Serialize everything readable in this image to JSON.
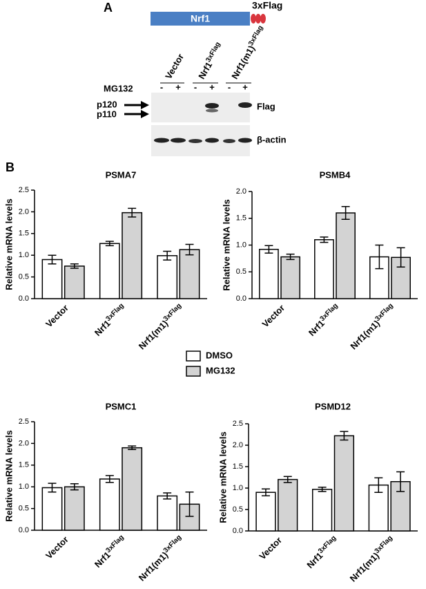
{
  "panel_a": {
    "label": "A",
    "construct": {
      "protein": "Nrf1",
      "tag": "3xFlag"
    },
    "lanes": [
      {
        "text": "Vector"
      },
      {
        "text": "Nrf1",
        "sup": "3xFlag"
      },
      {
        "text": "Nrf1(m1)",
        "sup": "3xFlag"
      }
    ],
    "treatment": {
      "label": "MG132",
      "signs": [
        "-",
        "+",
        "-",
        "+",
        "-",
        "+"
      ]
    },
    "bands": {
      "upper": "p120",
      "lower": "p110"
    },
    "blots": [
      "Flag",
      "β-actin"
    ]
  },
  "panel_b": {
    "label": "B",
    "legend": [
      {
        "name": "DMSO",
        "color": "#ffffff"
      },
      {
        "name": "MG132",
        "color": "#d3d3d3"
      }
    ]
  },
  "chart_data": [
    {
      "type": "bar",
      "title": "PSMA7",
      "y_label": "Relative mRNA levels",
      "categories": [
        {
          "text": "Vector"
        },
        {
          "text": "Nrf1",
          "sup": "3xFlag"
        },
        {
          "text": "Nrf1(m1)",
          "sup": "3xFlag"
        }
      ],
      "series": [
        {
          "values": [
            0.9,
            1.27,
            0.99
          ],
          "errors": [
            0.1,
            0.05,
            0.1
          ]
        },
        {
          "values": [
            0.75,
            1.98,
            1.13
          ],
          "errors": [
            0.05,
            0.1,
            0.12
          ]
        }
      ],
      "ylim": [
        0,
        2.5
      ],
      "yticks": [
        {
          "value": 0,
          "label": "0.0"
        },
        {
          "value": 0.5,
          "label": "0.5"
        },
        {
          "value": 1,
          "label": "1.0"
        },
        {
          "value": 1.5,
          "label": "1.5"
        },
        {
          "value": 2,
          "label": "2.0"
        },
        {
          "value": 2.5,
          "label": "2.5"
        }
      ]
    },
    {
      "type": "bar",
      "title": "PSMB4",
      "y_label": "Relative mRNA levels",
      "categories": [
        {
          "text": "Vector"
        },
        {
          "text": "Nrf1",
          "sup": "3xFlag"
        },
        {
          "text": "Nrf1(m1)",
          "sup": "3xFlag"
        }
      ],
      "series": [
        {
          "values": [
            0.92,
            1.1,
            0.78
          ],
          "errors": [
            0.07,
            0.05,
            0.22
          ]
        },
        {
          "values": [
            0.78,
            1.6,
            0.77
          ],
          "errors": [
            0.05,
            0.12,
            0.18
          ]
        }
      ],
      "ylim": [
        0,
        2
      ],
      "yticks": [
        {
          "value": 0,
          "label": "0.0"
        },
        {
          "value": 0.5,
          "label": "0.5"
        },
        {
          "value": 1,
          "label": "1.0"
        },
        {
          "value": 1.5,
          "label": "1.5"
        },
        {
          "value": 2,
          "label": "2.0"
        }
      ]
    },
    {
      "type": "bar",
      "title": "PSMC1",
      "y_label": "Relative mRNA levels",
      "categories": [
        {
          "text": "Vector"
        },
        {
          "text": "Nrf1",
          "sup": "3xFlag"
        },
        {
          "text": "Nrf1(m1)",
          "sup": "3xFlag"
        }
      ],
      "series": [
        {
          "values": [
            0.98,
            1.18,
            0.79
          ],
          "errors": [
            0.1,
            0.08,
            0.07
          ]
        },
        {
          "values": [
            1.0,
            1.9,
            0.6
          ],
          "errors": [
            0.07,
            0.04,
            0.28
          ]
        }
      ],
      "ylim": [
        0,
        2.5
      ],
      "yticks": [
        {
          "value": 0,
          "label": "0.0"
        },
        {
          "value": 0.5,
          "label": "0.5"
        },
        {
          "value": 1,
          "label": "1.0"
        },
        {
          "value": 1.5,
          "label": "1.5"
        },
        {
          "value": 2,
          "label": "2.0"
        },
        {
          "value": 2.5,
          "label": "2.5"
        }
      ]
    },
    {
      "type": "bar",
      "title": "PSMD12",
      "y_label": "Relative mRNA levels",
      "categories": [
        {
          "text": "Vector"
        },
        {
          "text": "Nrf1",
          "sup": "3xFlag"
        },
        {
          "text": "Nrf1(m1)",
          "sup": "3xFlag"
        }
      ],
      "series": [
        {
          "values": [
            0.9,
            0.97,
            1.07
          ],
          "errors": [
            0.08,
            0.05,
            0.17
          ]
        },
        {
          "values": [
            1.2,
            2.22,
            1.15
          ],
          "errors": [
            0.07,
            0.1,
            0.23
          ]
        }
      ],
      "ylim": [
        0,
        2.5
      ],
      "yticks": [
        {
          "value": 0,
          "label": "0.0"
        },
        {
          "value": 0.5,
          "label": "0.5"
        },
        {
          "value": 1,
          "label": "1.0"
        },
        {
          "value": 1.5,
          "label": "1.5"
        },
        {
          "value": 2,
          "label": "2.0"
        },
        {
          "value": 2.5,
          "label": "2.5"
        }
      ]
    }
  ]
}
